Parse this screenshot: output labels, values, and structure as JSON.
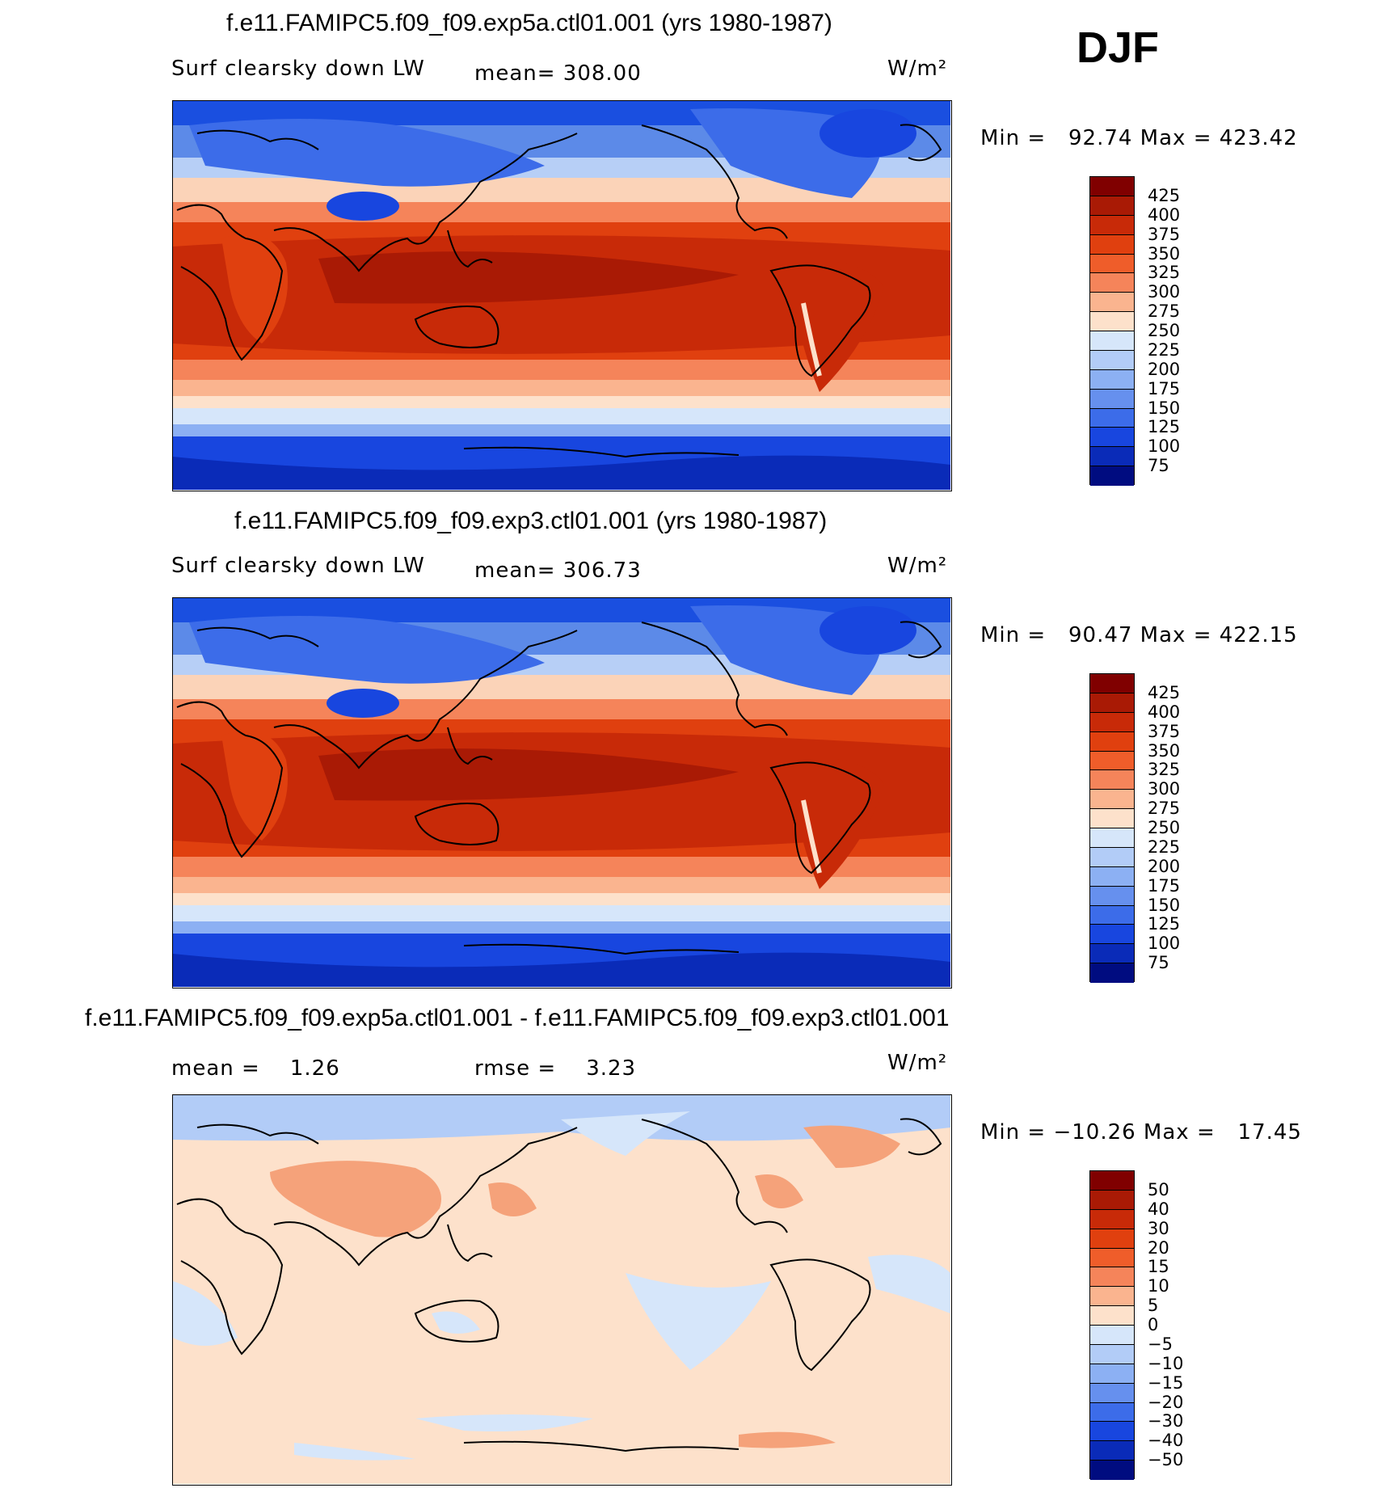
{
  "season": "DJF",
  "panels": [
    {
      "title": "f.e11.FAMIPC5.f09_f09.exp5a.ctl01.001 (yrs 1980-1987)",
      "left_text": "Surf clearsky down LW",
      "mid_text": "mean= 308.00",
      "units": "W/m²",
      "minmax": "Min =   92.74 Max = 423.42",
      "cbar_labels": [
        "425",
        "400",
        "375",
        "350",
        "325",
        "300",
        "275",
        "250",
        "225",
        "200",
        "175",
        "150",
        "125",
        "100",
        "75"
      ],
      "cbar_colors": [
        "#800000",
        "#a91a05",
        "#c82a08",
        "#e0400f",
        "#ef5d2a",
        "#f5845a",
        "#fab48f",
        "#fde1cb",
        "#d6e6fa",
        "#b2ccf7",
        "#8cb0f3",
        "#6690ee",
        "#3c6ce9",
        "#1846df",
        "#0a2bb8",
        "#000c80"
      ]
    },
    {
      "title": "f.e11.FAMIPC5.f09_f09.exp3.ctl01.001 (yrs 1980-1987)",
      "left_text": "Surf clearsky down LW",
      "mid_text": "mean= 306.73",
      "units": "W/m²",
      "minmax": "Min =   90.47 Max = 422.15",
      "cbar_labels": [
        "425",
        "400",
        "375",
        "350",
        "325",
        "300",
        "275",
        "250",
        "225",
        "200",
        "175",
        "150",
        "125",
        "100",
        "75"
      ],
      "cbar_colors": [
        "#800000",
        "#a91a05",
        "#c82a08",
        "#e0400f",
        "#ef5d2a",
        "#f5845a",
        "#fab48f",
        "#fde1cb",
        "#d6e6fa",
        "#b2ccf7",
        "#8cb0f3",
        "#6690ee",
        "#3c6ce9",
        "#1846df",
        "#0a2bb8",
        "#000c80"
      ]
    },
    {
      "title": "f.e11.FAMIPC5.f09_f09.exp5a.ctl01.001 - f.e11.FAMIPC5.f09_f09.exp3.ctl01.001",
      "left_text": "mean =    1.26",
      "mid_text": "rmse =    3.23",
      "units": "W/m²",
      "minmax": "Min = −10.26 Max =   17.45",
      "cbar_labels": [
        "50",
        "40",
        "30",
        "20",
        "15",
        "10",
        "5",
        "0",
        "−5",
        "−10",
        "−15",
        "−20",
        "−30",
        "−40",
        "−50"
      ],
      "cbar_colors": [
        "#800000",
        "#a91a05",
        "#c82a08",
        "#e0400f",
        "#ef5d2a",
        "#f5845a",
        "#fab48f",
        "#fde1cb",
        "#d6e6fa",
        "#b2ccf7",
        "#8cb0f3",
        "#6690ee",
        "#3c6ce9",
        "#1846df",
        "#0a2bb8",
        "#000c80"
      ]
    }
  ],
  "colors": {
    "mean_polar": "#1a4fe0",
    "mean_highlat": "#5c8ae8",
    "mean_midlat": "#b7cff6",
    "mean_subtrop": "#fbd3b8",
    "mean_warm": "#ef6a3a",
    "mean_tropics": "#c93208",
    "mean_core": "#a82204",
    "diff_background": "#fde1cb",
    "diff_positive": "#f5a27a",
    "diff_negative": "#d6e6fa"
  }
}
